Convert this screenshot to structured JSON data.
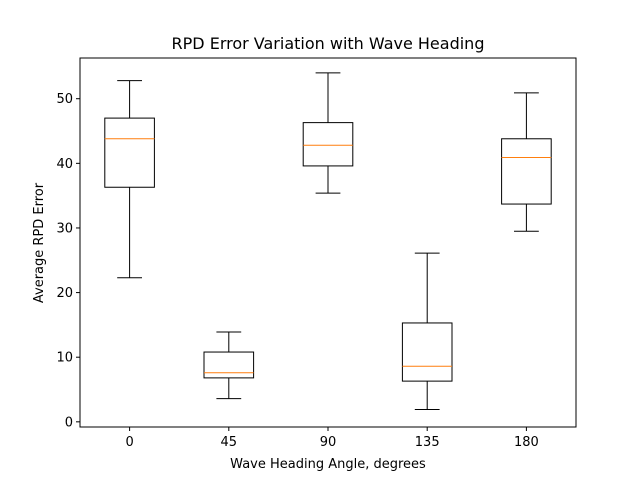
{
  "chart_data": {
    "type": "box",
    "title": "RPD Error Variation with Wave Heading",
    "xlabel": "Wave Heading Angle, degrees",
    "ylabel": "Average RPD Error",
    "ylim": [
      -0.8,
      56.3
    ],
    "yticks": [
      0,
      10,
      20,
      30,
      40,
      50
    ],
    "grid": false,
    "categories": [
      "0",
      "45",
      "90",
      "135",
      "180"
    ],
    "boxes": [
      {
        "whisker_low": 22.3,
        "q1": 36.3,
        "median": 43.8,
        "q3": 47.0,
        "whisker_high": 52.8
      },
      {
        "whisker_low": 3.6,
        "q1": 6.8,
        "median": 7.6,
        "q3": 10.8,
        "whisker_high": 13.9
      },
      {
        "whisker_low": 35.4,
        "q1": 39.6,
        "median": 42.8,
        "q3": 46.3,
        "whisker_high": 54.0
      },
      {
        "whisker_low": 1.9,
        "q1": 6.3,
        "median": 8.6,
        "q3": 15.3,
        "whisker_high": 26.1
      },
      {
        "whisker_low": 29.5,
        "q1": 33.7,
        "median": 40.9,
        "q3": 43.8,
        "whisker_high": 50.9
      }
    ],
    "colors": {
      "box": "#000000",
      "median": "#ff7f0e"
    }
  }
}
